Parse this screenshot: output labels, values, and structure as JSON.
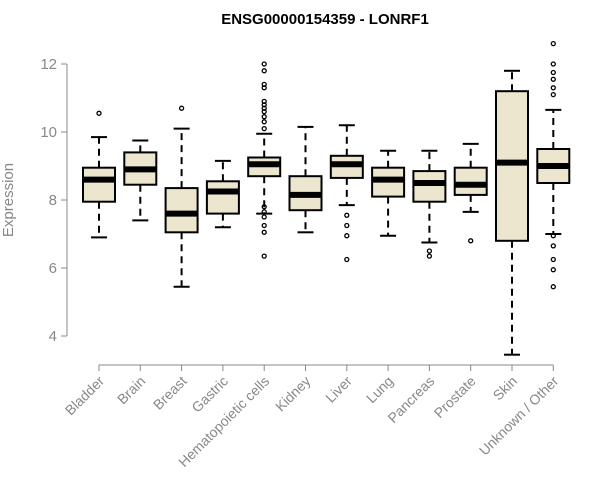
{
  "chart_data": {
    "type": "box",
    "title": "ENSG00000154359 - LONRF1",
    "xlabel": "",
    "ylabel": "Expression",
    "ylim": [
      3.2,
      12.8
    ],
    "yticks": [
      4,
      6,
      8,
      10,
      12
    ],
    "grid": false,
    "box_fill": "#ede6cf",
    "median_color": "#000000",
    "axis_color": "#888888",
    "categories": [
      "Bladder",
      "Brain",
      "Breast",
      "Gastric",
      "Hematopoietic cells",
      "Kidney",
      "Liver",
      "Lung",
      "Pancreas",
      "Prostate",
      "Skin",
      "Unknown / Other"
    ],
    "boxes": [
      {
        "whisker_low": 6.9,
        "q1": 7.95,
        "median": 8.6,
        "q3": 8.95,
        "whisker_high": 9.85,
        "outliers": [
          10.55
        ]
      },
      {
        "whisker_low": 7.4,
        "q1": 8.45,
        "median": 8.9,
        "q3": 9.4,
        "whisker_high": 9.75,
        "outliers": []
      },
      {
        "whisker_low": 5.45,
        "q1": 7.05,
        "median": 7.6,
        "q3": 8.35,
        "whisker_high": 10.1,
        "outliers": [
          10.7
        ]
      },
      {
        "whisker_low": 7.2,
        "q1": 7.6,
        "median": 8.25,
        "q3": 8.55,
        "whisker_high": 9.15,
        "outliers": []
      },
      {
        "whisker_low": 7.6,
        "q1": 8.7,
        "median": 9.05,
        "q3": 9.25,
        "whisker_high": 9.95,
        "outliers": [
          6.35,
          7.05,
          7.25,
          7.5,
          7.65,
          7.8,
          10.1,
          10.3,
          10.45,
          10.6,
          10.7,
          10.8,
          10.9,
          11.3,
          11.4,
          11.8,
          12.0
        ]
      },
      {
        "whisker_low": 7.05,
        "q1": 7.7,
        "median": 8.15,
        "q3": 8.7,
        "whisker_high": 10.15,
        "outliers": []
      },
      {
        "whisker_low": 7.85,
        "q1": 8.65,
        "median": 9.05,
        "q3": 9.3,
        "whisker_high": 10.2,
        "outliers": [
          6.25,
          6.95,
          7.25,
          7.55
        ]
      },
      {
        "whisker_low": 6.95,
        "q1": 8.1,
        "median": 8.6,
        "q3": 8.95,
        "whisker_high": 9.45,
        "outliers": []
      },
      {
        "whisker_low": 6.75,
        "q1": 7.95,
        "median": 8.5,
        "q3": 8.85,
        "whisker_high": 9.45,
        "outliers": [
          6.35,
          6.5
        ]
      },
      {
        "whisker_low": 7.65,
        "q1": 8.15,
        "median": 8.45,
        "q3": 8.95,
        "whisker_high": 9.65,
        "outliers": [
          6.8
        ]
      },
      {
        "whisker_low": 3.45,
        "q1": 6.8,
        "median": 9.1,
        "q3": 11.2,
        "whisker_high": 11.8,
        "outliers": []
      },
      {
        "whisker_low": 7.0,
        "q1": 8.5,
        "median": 9.0,
        "q3": 9.5,
        "whisker_high": 10.65,
        "outliers": [
          5.45,
          5.95,
          6.25,
          6.65,
          6.95,
          11.1,
          11.3,
          11.55,
          11.75,
          12.0,
          12.6
        ]
      }
    ]
  }
}
